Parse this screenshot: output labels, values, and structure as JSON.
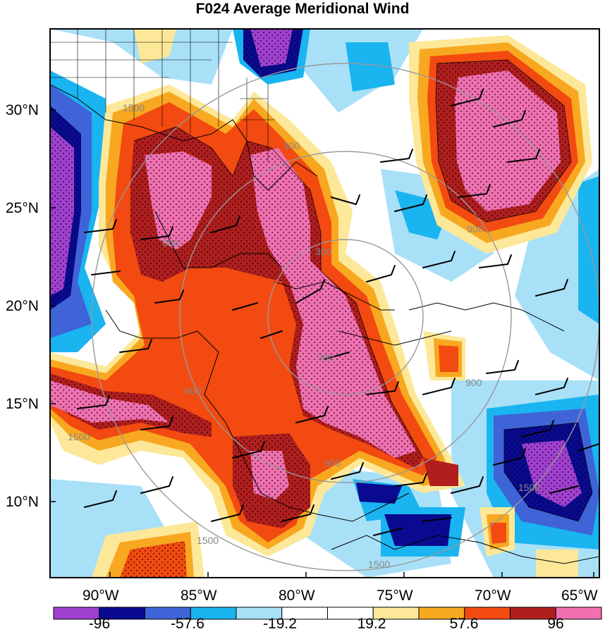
{
  "title": "F024 Average Meridional Wind",
  "lat_labels": [
    "30°N",
    "25°N",
    "20°N",
    "15°N",
    "10°N"
  ],
  "lon_labels": [
    "90°W",
    "85°W",
    "80°W",
    "75°W",
    "70°W",
    "65°W"
  ],
  "range_rings": [
    "300",
    "900",
    "1500"
  ],
  "ring_labels_text": [
    "300",
    "300",
    "900",
    "900",
    "900",
    "900",
    "900",
    "900",
    "1500",
    "1500",
    "1500",
    "1500",
    "1500"
  ],
  "colorbar": {
    "colors": [
      "#a040d0",
      "#0a0a90",
      "#3e64d8",
      "#1ab4f0",
      "#a8e0f8",
      "#ffffff",
      "#ffffff",
      "#fce898",
      "#f8a820",
      "#f24a10",
      "#b01e1e",
      "#f070b0"
    ],
    "labels": [
      "-96",
      "-57.6",
      "-19.2",
      "19.2",
      "57.6",
      "96"
    ]
  }
}
